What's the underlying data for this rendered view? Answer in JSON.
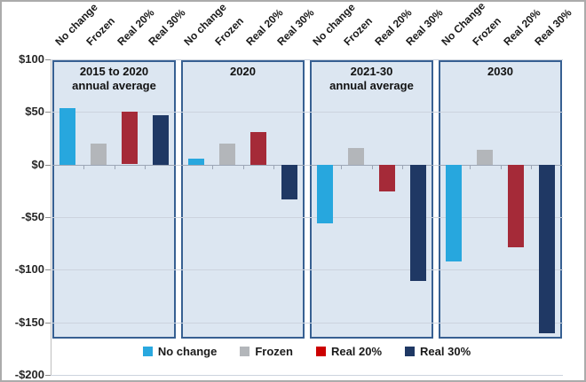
{
  "chart_data": {
    "type": "bar",
    "title": "",
    "xlabel": "",
    "ylabel": "",
    "ylim": [
      -200,
      100
    ],
    "grid": true,
    "legend_position": "bottom",
    "yticks": [
      {
        "label": "$100",
        "value": 100
      },
      {
        "label": "$50",
        "value": 50
      },
      {
        "label": "$0",
        "value": 0
      },
      {
        "label": "-$50",
        "value": -50
      },
      {
        "label": "-$100",
        "value": -100
      },
      {
        "label": "-$150",
        "value": -150
      },
      {
        "label": "-$200",
        "value": -200
      }
    ],
    "panels": [
      {
        "header_lines": [
          "2015 to 2020",
          "annual average"
        ],
        "bar_labels": [
          "No change",
          "Frozen",
          "Real 20%",
          "Real 30%"
        ],
        "values": [
          54,
          20,
          50,
          47
        ]
      },
      {
        "header_lines": [
          "2020"
        ],
        "bar_labels": [
          "No change",
          "Frozen",
          "Real 20%",
          "Real 30%"
        ],
        "values": [
          6,
          20,
          31,
          -33
        ]
      },
      {
        "header_lines": [
          "2021-30",
          "annual average"
        ],
        "bar_labels": [
          "No change",
          "Frozen",
          "Real 20%",
          "Real 30%"
        ],
        "values": [
          -56,
          16,
          -25,
          -110
        ]
      },
      {
        "header_lines": [
          "2030"
        ],
        "bar_labels": [
          "No Change",
          "Frozen",
          "Real 20%",
          "Real 30%"
        ],
        "values": [
          -92,
          14,
          -78,
          -160
        ]
      }
    ],
    "series_colors": [
      "#27a7de",
      "#b3b6ba",
      "#a52a38",
      "#1f3864"
    ],
    "legend": [
      {
        "label": "No change",
        "color": "#29a8df"
      },
      {
        "label": "Frozen",
        "color": "#b3b6ba"
      },
      {
        "label": "Real 20%",
        "color": "#cc0000"
      },
      {
        "label": "Real 30%",
        "color": "#1f3864"
      }
    ]
  },
  "colors": {
    "panel_fill": "#dce6f1",
    "panel_border": "#376092",
    "gridline": "#ccd3de",
    "zero_line": "#9ca6b6",
    "outer_border": "#ababab",
    "bar_light_blue": "#27a7de",
    "bar_gray": "#b3b6ba",
    "bar_dark_red": "#a52a38",
    "bar_navy": "#1f3864",
    "legend_red": "#cc0000"
  }
}
